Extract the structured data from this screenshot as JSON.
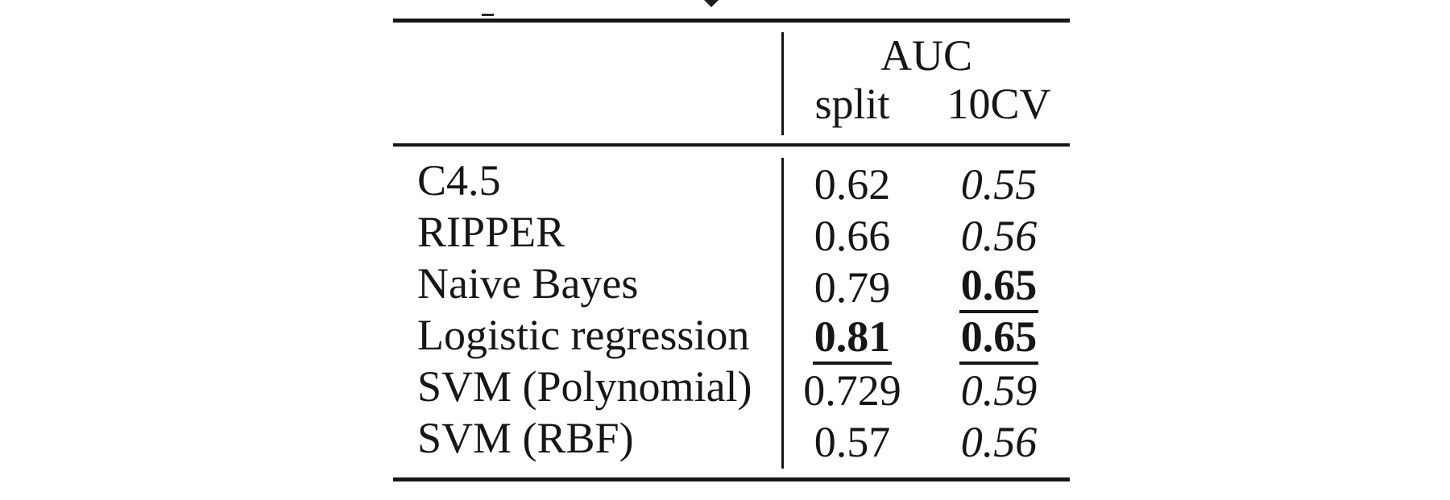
{
  "table": {
    "group_header": "AUC",
    "col_headers": [
      "split",
      "10CV"
    ],
    "rows": [
      {
        "label": "C4.5",
        "split": "0.62",
        "split_style": "normal",
        "cv10": "0.55",
        "cv10_style": "italic"
      },
      {
        "label": "RIPPER",
        "split": "0.66",
        "split_style": "normal",
        "cv10": "0.56",
        "cv10_style": "italic"
      },
      {
        "label": "Naive Bayes",
        "split": "0.79",
        "split_style": "normal",
        "cv10": "0.65",
        "cv10_style": "bold-underline"
      },
      {
        "label": "Logistic regression",
        "split": "0.81",
        "split_style": "bold-underline",
        "cv10": "0.65",
        "cv10_style": "bold-underline"
      },
      {
        "label": "SVM (Polynomial)",
        "split": "0.729",
        "split_style": "normal",
        "cv10": "0.59",
        "cv10_style": "italic"
      },
      {
        "label": "SVM (RBF)",
        "split": "0.57",
        "split_style": "normal",
        "cv10": "0.56",
        "cv10_style": "italic"
      }
    ]
  },
  "colors": {
    "background": "#ffffff",
    "text": "#161616",
    "rule": "#161616"
  },
  "chart_data": {
    "type": "table",
    "title": "AUC",
    "columns": [
      "split",
      "10CV"
    ],
    "categories": [
      "C4.5",
      "RIPPER",
      "Naive Bayes",
      "Logistic regression",
      "SVM (Polynomial)",
      "SVM (RBF)"
    ],
    "series": [
      {
        "name": "split",
        "values": [
          0.62,
          0.66,
          0.79,
          0.81,
          0.729,
          0.57
        ]
      },
      {
        "name": "10CV",
        "values": [
          0.55,
          0.56,
          0.65,
          0.65,
          0.59,
          0.56
        ]
      }
    ],
    "emphasis_bold_underlined": [
      {
        "model": "Naive Bayes",
        "column": "10CV",
        "value": 0.65
      },
      {
        "model": "Logistic regression",
        "column": "split",
        "value": 0.81
      },
      {
        "model": "Logistic regression",
        "column": "10CV",
        "value": 0.65
      }
    ]
  }
}
